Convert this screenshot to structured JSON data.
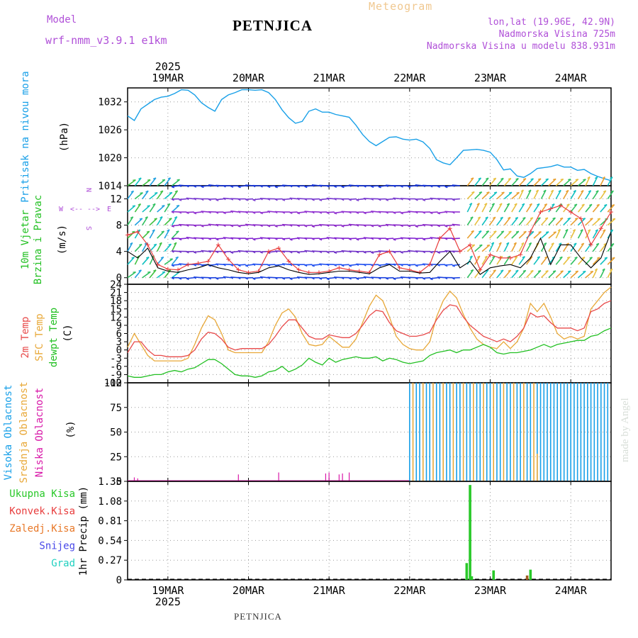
{
  "header": {
    "model_label": "Model",
    "model_name": "wrf-nmm_v3.9.1 e1km",
    "location": "PETNJICA",
    "product": "Meteogram",
    "coords": "lon,lat (19.96E, 42.9N)",
    "elevation": "Nadmorska Visina 725m",
    "model_elevation": "Nadmorska Visina u modelu 838.931m"
  },
  "footer": {
    "location": "PETNJICA"
  },
  "credit": "made by Angel",
  "colors": {
    "pressure": "#19a0e8",
    "wind_speed": "#000000",
    "gust": "#e83c3c",
    "temp2m": "#e84a4a",
    "sfc_temp": "#e8a838",
    "dewpoint": "#22c022",
    "cloud_high": "#18a0e8",
    "cloud_mid": "#e8a838",
    "cloud_low": "#d818a8",
    "rain_total": "#28c828",
    "rain_conv": "#e83c3c",
    "rain_frozen": "#e87828",
    "snow": "#4848e8",
    "graupel": "#20d0c0"
  },
  "chart_data": [
    {
      "type": "line",
      "panel": "pressure",
      "ylabel": [
        "Pritisak na nivou mora",
        "(hPa)"
      ],
      "yticks": [
        1014,
        1020,
        1026,
        1032
      ],
      "ylim": [
        1014,
        1035
      ],
      "xlim": [
        0,
        144
      ],
      "year": "2025",
      "x_tick_labels": [
        "19MAR",
        "20MAR",
        "21MAR",
        "22MAR",
        "23MAR",
        "24MAR"
      ],
      "x_tick_hours": [
        12,
        36,
        60,
        84,
        108,
        132
      ],
      "grid": true,
      "series": [
        {
          "x": [
            0,
            2,
            4,
            6,
            8,
            10,
            12,
            14,
            16,
            18,
            20,
            22,
            24,
            26,
            28,
            30,
            32,
            34,
            36,
            38,
            40,
            42,
            44,
            46,
            48,
            50,
            52,
            54,
            56,
            58,
            60,
            62,
            64,
            66,
            68,
            70,
            72,
            74,
            76,
            78,
            80,
            82,
            84,
            86,
            88,
            90,
            92,
            94,
            96,
            98,
            100,
            102,
            104,
            106,
            108,
            110,
            112,
            114,
            116,
            118,
            120,
            122,
            124,
            126,
            128,
            130,
            132,
            134,
            136,
            138,
            140,
            142,
            144
          ],
          "y": [
            1029.0,
            1028.0,
            1030.5,
            1031.5,
            1032.5,
            1033.0,
            1033.2,
            1033.8,
            1034.6,
            1034.5,
            1033.5,
            1031.8,
            1030.8,
            1030.0,
            1032.5,
            1033.5,
            1034.0,
            1034.6,
            1034.6,
            1034.5,
            1034.6,
            1034.0,
            1032.5,
            1030.3,
            1028.6,
            1027.4,
            1027.8,
            1030.0,
            1030.5,
            1029.8,
            1029.8,
            1029.3,
            1029.0,
            1028.7,
            1027.0,
            1025.0,
            1023.5,
            1022.6,
            1023.5,
            1024.4,
            1024.5,
            1024.0,
            1023.8,
            1024.0,
            1023.4,
            1022.0,
            1019.6,
            1018.9,
            1018.5,
            1020.0,
            1021.6,
            1021.7,
            1021.8,
            1021.6,
            1021.2,
            1019.6,
            1017.4,
            1017.6,
            1016.1,
            1015.8,
            1016.6,
            1017.7,
            1017.9,
            1018.1,
            1018.5,
            1018.0,
            1018.0,
            1017.3,
            1017.5,
            1016.6,
            1016.0,
            1015.5,
            1015.1
          ]
        }
      ]
    },
    {
      "type": "line",
      "panel": "wind",
      "ylabel": [
        "10m Vjetar",
        "Brzina i Pravac",
        "(m/s)"
      ],
      "compass": {
        "n": "N",
        "s": "S",
        "e": "E",
        "w": "W",
        "arrows": "<-- -->"
      },
      "yticks": [
        0,
        4,
        8,
        12
      ],
      "ylim": [
        -1,
        14
      ],
      "barb_levels": [
        0,
        2,
        4,
        6,
        8,
        10,
        12,
        14
      ],
      "series": [
        {
          "name": "speed",
          "x": [
            0,
            3,
            6,
            9,
            12,
            15,
            18,
            21,
            24,
            27,
            30,
            33,
            36,
            39,
            42,
            45,
            48,
            51,
            54,
            57,
            60,
            63,
            66,
            69,
            72,
            75,
            78,
            81,
            84,
            87,
            90,
            93,
            96,
            99,
            102,
            105,
            108,
            111,
            114,
            117,
            120,
            123,
            126,
            129,
            132,
            135,
            138,
            141,
            144
          ],
          "y": [
            4,
            3,
            4.5,
            1.5,
            1,
            0.8,
            1.2,
            1.5,
            2,
            1.5,
            1.2,
            0.8,
            0.6,
            0.8,
            1.5,
            1.8,
            1.2,
            0.8,
            0.5,
            0.6,
            0.8,
            1,
            1,
            0.8,
            0.6,
            1.5,
            2,
            1,
            1,
            0.7,
            0.8,
            2.5,
            4,
            1.5,
            2.5,
            0.5,
            1.5,
            1.8,
            2,
            1.5,
            3,
            6,
            2,
            5,
            5,
            3,
            1.5,
            3,
            7
          ]
        },
        {
          "name": "gust",
          "x": [
            0,
            3,
            6,
            9,
            12,
            15,
            18,
            21,
            24,
            27,
            30,
            33,
            36,
            39,
            42,
            45,
            48,
            51,
            54,
            57,
            60,
            63,
            66,
            69,
            72,
            75,
            78,
            81,
            84,
            87,
            90,
            93,
            96,
            99,
            102,
            105,
            108,
            111,
            114,
            117,
            120,
            123,
            126,
            129,
            132,
            135,
            138,
            141,
            144
          ],
          "y": [
            6.5,
            7,
            5,
            2,
            1.3,
            1.2,
            2,
            2.2,
            2.5,
            5,
            2.8,
            1.2,
            0.8,
            1,
            4,
            4.5,
            2.5,
            1.2,
            0.8,
            0.8,
            1,
            1.5,
            1.2,
            1,
            0.8,
            3.5,
            4,
            1.5,
            1.2,
            0.8,
            2,
            6,
            7.5,
            4,
            5,
            1.2,
            3.5,
            3,
            3,
            3.5,
            7,
            10,
            10.5,
            11,
            10,
            9,
            5,
            7.5,
            10
          ]
        }
      ]
    },
    {
      "type": "line",
      "panel": "temperature",
      "ylabel": [
        "2m Temp",
        "SFC Temp",
        "dewpt Temp",
        "(C)"
      ],
      "yticks": [
        -12,
        -9,
        -6,
        -3,
        0,
        3,
        6,
        9,
        12,
        15,
        18,
        21,
        24
      ],
      "ylim": [
        -12,
        24
      ],
      "series": [
        {
          "name": "2m",
          "x": [
            0,
            2,
            4,
            6,
            8,
            10,
            12,
            14,
            16,
            18,
            20,
            22,
            24,
            26,
            28,
            30,
            32,
            34,
            36,
            38,
            40,
            42,
            44,
            46,
            48,
            50,
            52,
            54,
            56,
            58,
            60,
            62,
            64,
            66,
            68,
            70,
            72,
            74,
            76,
            78,
            80,
            82,
            84,
            86,
            88,
            90,
            92,
            94,
            96,
            98,
            100,
            102,
            104,
            106,
            108,
            110,
            112,
            114,
            116,
            118,
            120,
            122,
            124,
            126,
            128,
            130,
            132,
            134,
            136,
            138,
            140,
            142,
            144
          ],
          "y": [
            -1,
            3,
            3,
            0,
            -2,
            -2,
            -2.5,
            -2.5,
            -2.5,
            -2,
            0,
            4,
            6.5,
            6,
            4,
            1,
            0,
            0.5,
            0.5,
            0.5,
            0.5,
            2,
            5,
            8.5,
            11,
            11,
            8,
            5,
            4,
            4,
            5.5,
            5,
            4.5,
            4.5,
            6,
            9,
            12.5,
            14.5,
            14,
            10,
            7,
            6,
            5,
            5,
            5.5,
            6.5,
            11,
            14.5,
            16.5,
            16,
            12,
            9,
            7,
            5,
            4,
            3,
            4,
            3,
            5,
            8,
            13.5,
            12,
            12.5,
            10,
            8,
            8,
            8,
            7,
            8,
            14,
            15,
            17,
            18
          ]
        },
        {
          "name": "sfc",
          "x": [
            0,
            2,
            4,
            6,
            8,
            10,
            12,
            14,
            16,
            18,
            20,
            22,
            24,
            26,
            28,
            30,
            32,
            34,
            36,
            38,
            40,
            42,
            44,
            46,
            48,
            50,
            52,
            54,
            56,
            58,
            60,
            62,
            64,
            66,
            68,
            70,
            72,
            74,
            76,
            78,
            80,
            82,
            84,
            86,
            88,
            90,
            92,
            94,
            96,
            98,
            100,
            102,
            104,
            106,
            108,
            110,
            112,
            114,
            116,
            118,
            120,
            122,
            124,
            126,
            128,
            130,
            132,
            134,
            136,
            138,
            140,
            142,
            144
          ],
          "y": [
            1,
            6,
            2,
            -2,
            -4,
            -4,
            -4,
            -4,
            -4,
            -3,
            2,
            8,
            12.5,
            11,
            6,
            0,
            -1,
            -1,
            -1,
            -1,
            -1,
            3,
            9,
            13.5,
            15,
            12,
            6,
            2,
            1.5,
            2,
            5,
            3,
            1,
            1,
            4,
            10,
            16,
            20,
            18,
            12,
            5,
            2,
            0.5,
            0,
            0,
            3,
            12,
            18,
            21.5,
            19,
            13,
            8,
            4,
            2,
            1,
            0.5,
            3,
            0.5,
            3,
            8,
            17,
            14,
            17,
            12,
            6,
            4,
            5,
            4,
            5,
            15,
            18,
            21,
            23
          ]
        },
        {
          "name": "dewpt",
          "x": [
            0,
            2,
            4,
            6,
            8,
            10,
            12,
            14,
            16,
            18,
            20,
            22,
            24,
            26,
            28,
            30,
            32,
            34,
            36,
            38,
            40,
            42,
            44,
            46,
            48,
            50,
            52,
            54,
            56,
            58,
            60,
            62,
            64,
            66,
            68,
            70,
            72,
            74,
            76,
            78,
            80,
            82,
            84,
            86,
            88,
            90,
            92,
            94,
            96,
            98,
            100,
            102,
            104,
            106,
            108,
            110,
            112,
            114,
            116,
            118,
            120,
            122,
            124,
            126,
            128,
            130,
            132,
            134,
            136,
            138,
            140,
            142,
            144
          ],
          "y": [
            -9.5,
            -10,
            -10,
            -9.5,
            -9,
            -9,
            -8,
            -7.5,
            -8,
            -7,
            -6.5,
            -5,
            -3.5,
            -3.5,
            -5,
            -7,
            -9,
            -9.5,
            -9.5,
            -10,
            -9.5,
            -8,
            -7.5,
            -6,
            -8,
            -7,
            -5.5,
            -3,
            -4.5,
            -5.5,
            -3,
            -4.5,
            -3.5,
            -3,
            -2.5,
            -3,
            -3,
            -2.5,
            -4,
            -3,
            -3.5,
            -4.5,
            -5,
            -4.5,
            -4,
            -2,
            -1,
            -0.5,
            0,
            -1,
            0,
            0,
            1,
            2,
            1,
            -1,
            -1.5,
            -1,
            -1,
            -0.5,
            0,
            1,
            2,
            1,
            2,
            2.5,
            3,
            3.5,
            3.5,
            5,
            5.5,
            7,
            8
          ]
        }
      ]
    },
    {
      "type": "bar",
      "panel": "cloud",
      "ylabel": [
        "Visoka Oblacnost",
        "Srednja Oblacnost",
        "Niska Oblacnost",
        "(%)"
      ],
      "yticks": [
        0,
        25,
        50,
        75,
        100
      ],
      "ylim": [
        0,
        100
      ],
      "series": [
        {
          "name": "high",
          "pattern": "alternating 0/100 from hour 84 to hour 144",
          "start": 84,
          "end": 144
        },
        {
          "name": "mid",
          "pattern": "alternating 0/100 from hour 84 to hour 122, 28 at hour 122",
          "start": 84,
          "end": 122
        },
        {
          "name": "low",
          "x": [
            2,
            3,
            33,
            45,
            59,
            60,
            63,
            64,
            66
          ],
          "values": [
            4,
            3,
            7,
            9,
            8,
            9,
            7,
            8,
            9
          ]
        }
      ]
    },
    {
      "type": "bar",
      "panel": "precip",
      "ylabel": [
        "1hr Precip (mm)"
      ],
      "legend": [
        "Ukupna Kisa",
        "Konvek.Kisa",
        "Zaledj.Kisa",
        "Snijeg",
        "Grad"
      ],
      "yticks": [
        0,
        0.27,
        0.54,
        0.81,
        1.08,
        1.35
      ],
      "ylim": [
        0,
        1.35
      ],
      "series": [
        {
          "name": "total",
          "x": [
            101,
            102,
            102.5,
            109,
            120
          ],
          "values": [
            0.23,
            1.3,
            0.05,
            0.13,
            0.14
          ]
        },
        {
          "name": "frozen",
          "x": [
            119
          ],
          "values": [
            0.06
          ]
        }
      ]
    }
  ]
}
